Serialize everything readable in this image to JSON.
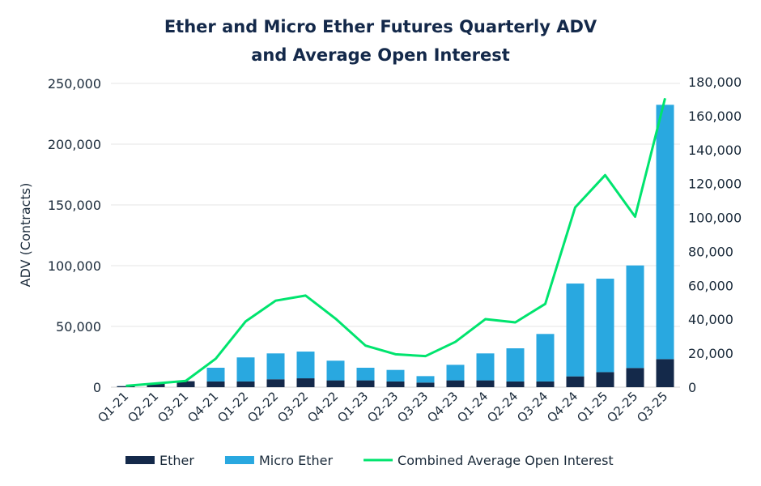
{
  "chart_data": {
    "type": "bar",
    "title": "Ether and Micro Ether Futures Quarterly ADV and Average Open Interest",
    "title_lines": [
      "Ether and Micro Ether Futures Quarterly ADV",
      "and Average Open Interest"
    ],
    "ylabel": "ADV (Contracts)",
    "ylabel_right": "",
    "ylim": [
      0,
      250000
    ],
    "ylim_right": [
      0,
      180000
    ],
    "yticks": [
      "0",
      "50,000",
      "100,000",
      "150,000",
      "200,000",
      "250,000"
    ],
    "yticks_right": [
      "0",
      "20,000",
      "40,000",
      "60,000",
      "80,000",
      "100,000",
      "120,000",
      "140,000",
      "160,000",
      "180,000"
    ],
    "grid": true,
    "legend_placement": "bottom",
    "categories": [
      "Q1-21",
      "Q2-21",
      "Q3-21",
      "Q4-21",
      "Q1-22",
      "Q2-22",
      "Q3-22",
      "Q4-22",
      "Q1-23",
      "Q2-23",
      "Q3-23",
      "Q4-23",
      "Q1-24",
      "Q2-24",
      "Q3-24",
      "Q4-24",
      "Q1-25",
      "Q2-25",
      "Q3-25"
    ],
    "series": [
      {
        "name": "Ether",
        "type": "bar",
        "stack": "adv",
        "axis": "left",
        "color": "#14294a",
        "values": [
          900,
          3100,
          4900,
          4700,
          4700,
          6500,
          7300,
          5600,
          5600,
          4700,
          3800,
          5600,
          5600,
          4700,
          4700,
          8900,
          12400,
          15800,
          23100
        ]
      },
      {
        "name": "Micro Ether",
        "type": "bar",
        "stack": "adv",
        "axis": "left",
        "color": "#29a8e0",
        "values": [
          100,
          0,
          0,
          11300,
          19800,
          21300,
          22000,
          16200,
          10400,
          9500,
          5300,
          12800,
          22200,
          27300,
          39100,
          76400,
          76900,
          84400,
          209300
        ]
      },
      {
        "name": "Combined Average Open Interest",
        "type": "line",
        "axis": "right",
        "color": "#00e46e",
        "values": [
          800,
          2200,
          3700,
          16800,
          38800,
          51000,
          54000,
          40400,
          24500,
          19400,
          18300,
          26700,
          40100,
          38200,
          49100,
          106000,
          125000,
          100500,
          170300
        ]
      }
    ]
  }
}
